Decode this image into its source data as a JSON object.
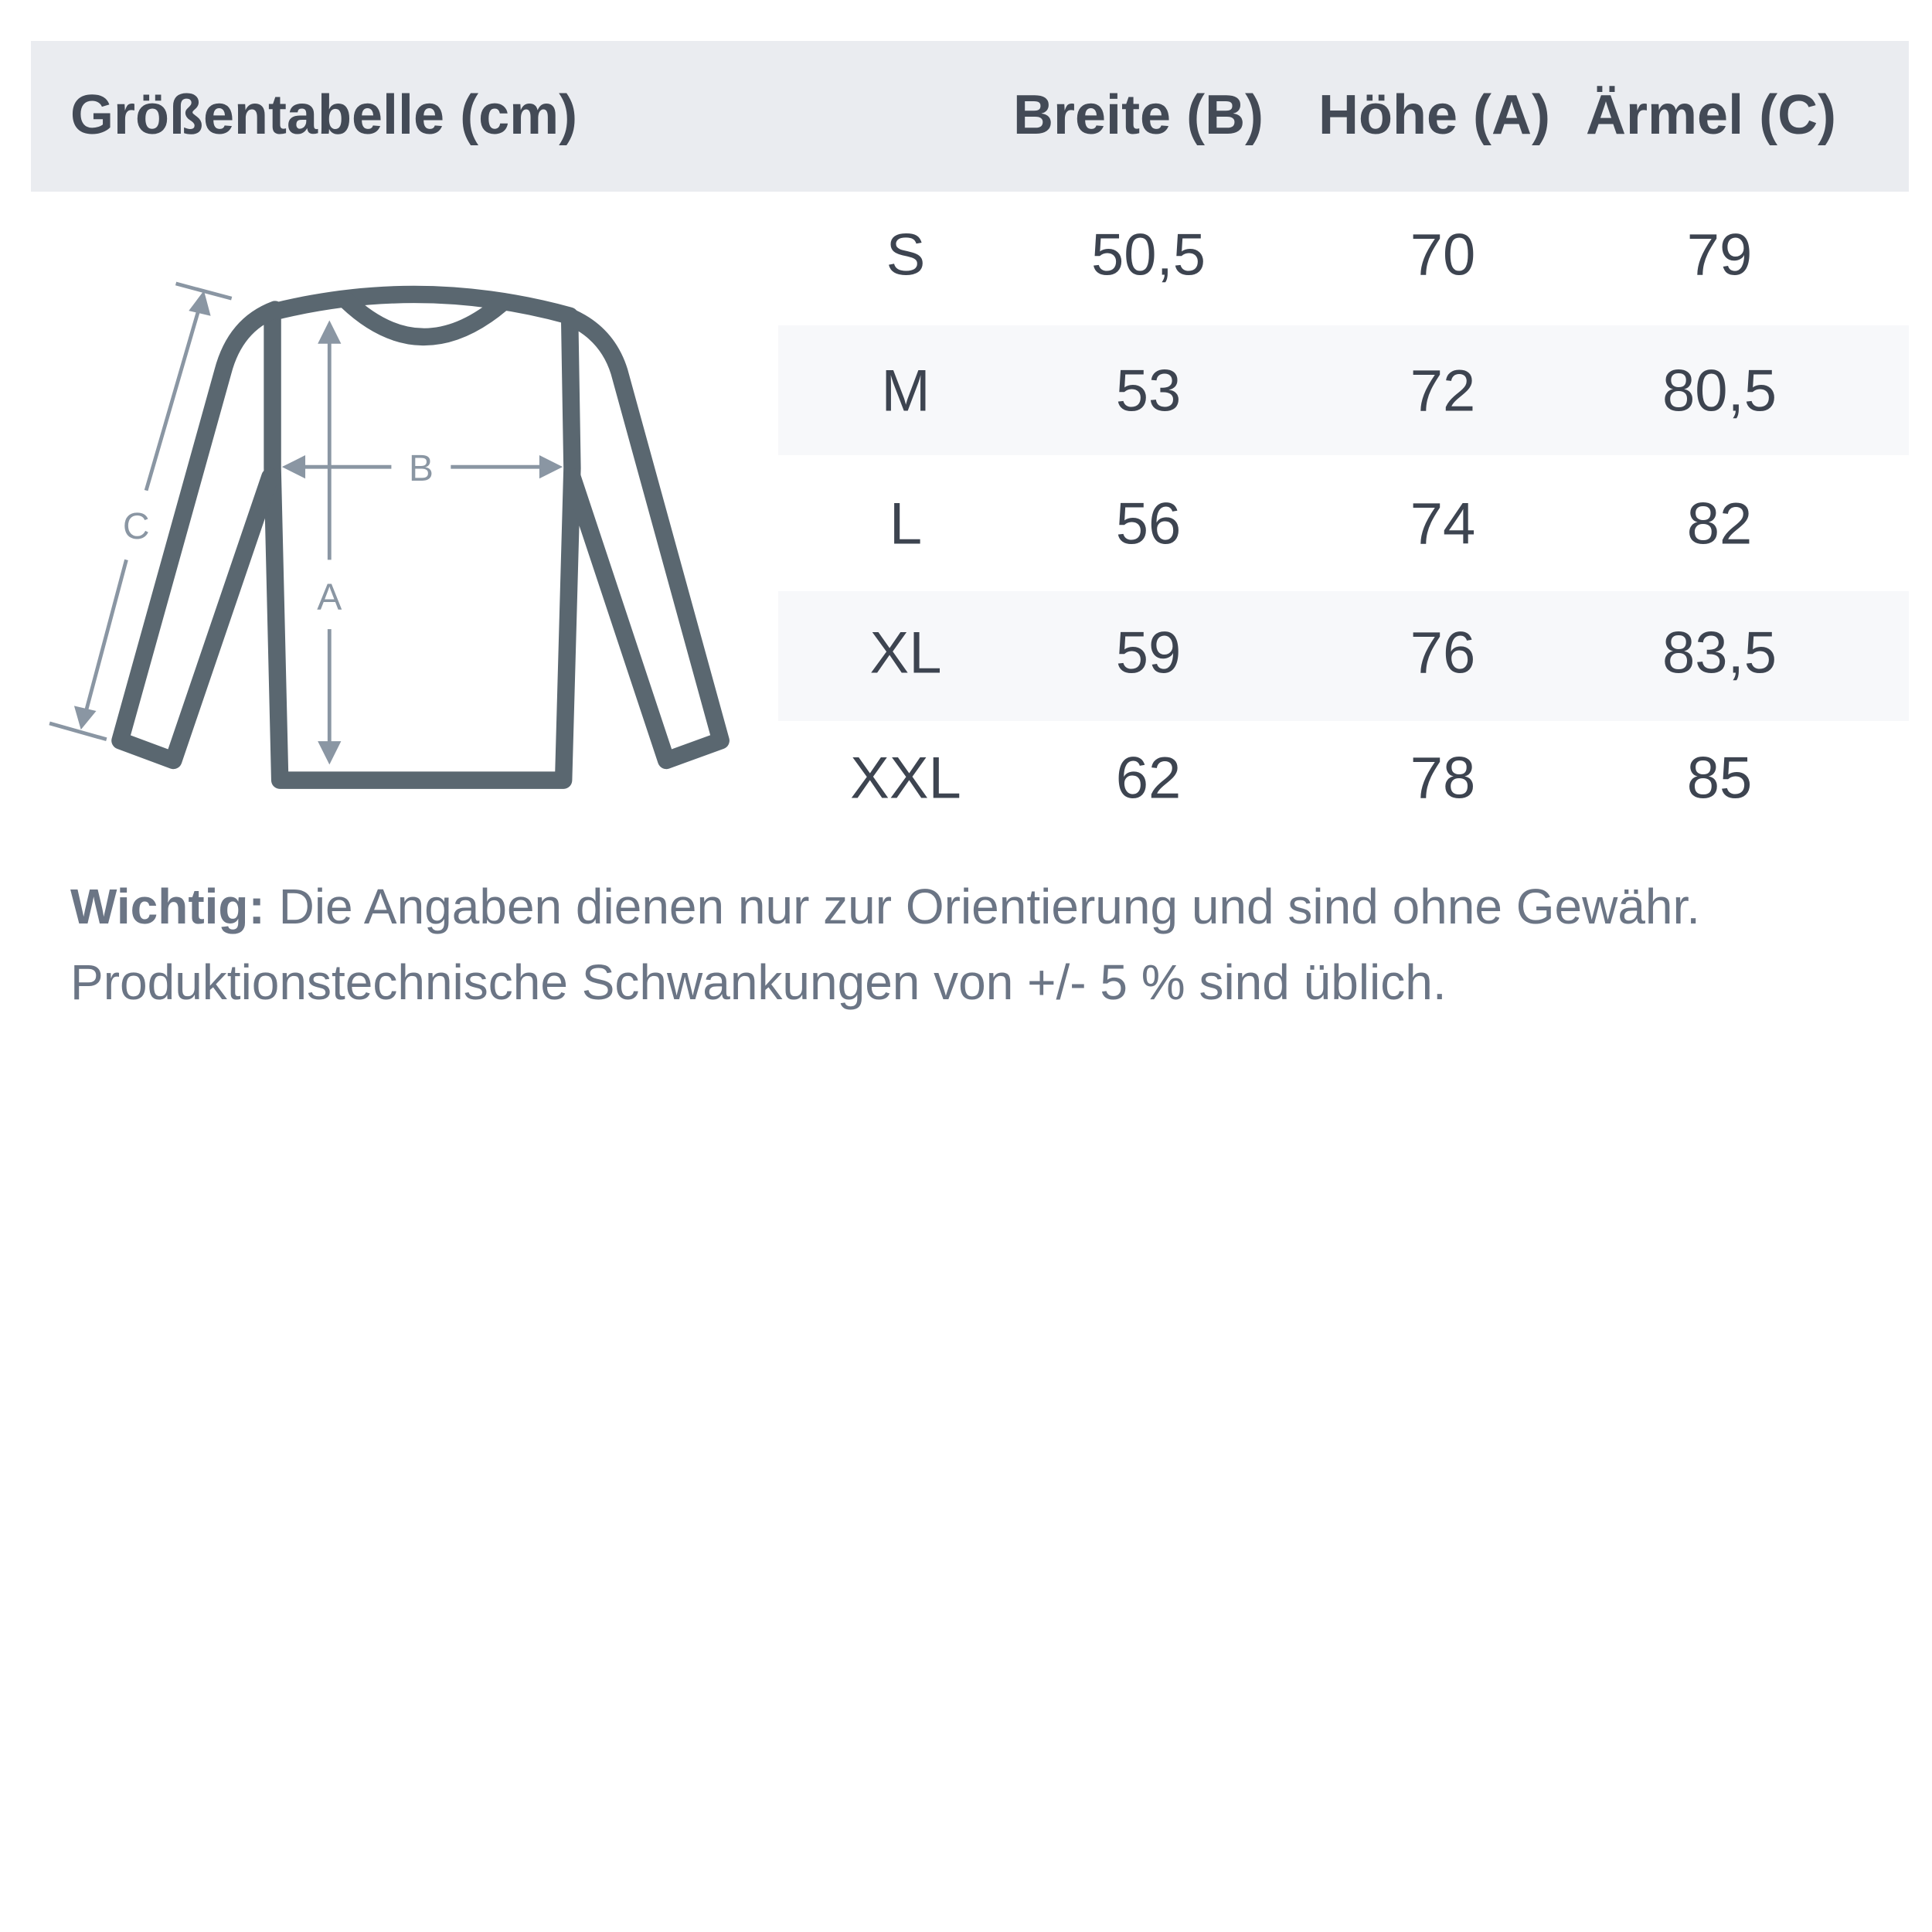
{
  "header": {
    "title": "Größentabelle (cm)",
    "columns": [
      "Breite (B)",
      "Höhe (A)",
      "Ärmel (C)"
    ]
  },
  "table": {
    "rows": [
      {
        "size": "S",
        "breite": "50,5",
        "hoehe": "70",
        "aermel": "79"
      },
      {
        "size": "M",
        "breite": "53",
        "hoehe": "72",
        "aermel": "80,5"
      },
      {
        "size": "L",
        "breite": "56",
        "hoehe": "74",
        "aermel": "82"
      },
      {
        "size": "XL",
        "breite": "59",
        "hoehe": "76",
        "aermel": "83,5"
      },
      {
        "size": "XXL",
        "breite": "62",
        "hoehe": "78",
        "aermel": "85"
      }
    ]
  },
  "diagram": {
    "labels": {
      "a": "A",
      "b": "B",
      "c": "C"
    },
    "icon": "long-sleeve-shirt-icon"
  },
  "note": {
    "label": "Wichtig:",
    "line1": "Die Angaben dienen nur zur Orientierung und sind ohne Gewähr.",
    "line2": "Produktionstechnische Schwankungen von +/- 5 % sind üblich."
  },
  "colors": {
    "header_bg": "#eaecf0",
    "stripe_bg": "#f7f8fa",
    "text": "#3d4450",
    "shirt": "#5a6770",
    "arrows": "#8a96a3",
    "note": "#6b7585"
  }
}
